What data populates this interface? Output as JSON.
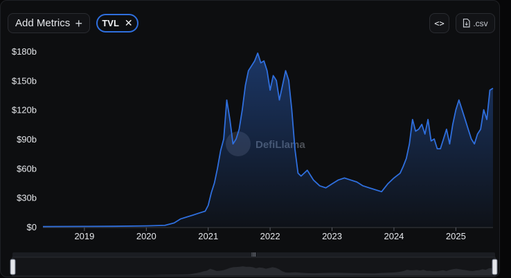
{
  "toolbar": {
    "add_metrics_label": "Add Metrics",
    "add_icon": "plus-icon",
    "metric_chip_label": "TVL",
    "remove_icon": "close-icon",
    "embed_icon": "code-icon",
    "csv_label": ".csv",
    "csv_icon": "file-icon"
  },
  "watermark": "DefiLlama",
  "chart_data": {
    "type": "area",
    "title": "",
    "xlabel": "",
    "ylabel": "",
    "x_ticks": [
      "2019",
      "2020",
      "2021",
      "2022",
      "2023",
      "2024",
      "2025"
    ],
    "y_ticks": [
      "$0",
      "$30b",
      "$60b",
      "$90b",
      "$120b",
      "$150b",
      "$180b"
    ],
    "ylim": [
      0,
      180
    ],
    "xlim": [
      2018.33,
      2025.6
    ],
    "grid": false,
    "line_color": "#2f6fde",
    "series": [
      {
        "values_unit": "USD billions",
        "x": [
          2018.33,
          2019.0,
          2019.5,
          2020.0,
          2020.3,
          2020.45,
          2020.55,
          2020.65,
          2020.75,
          2020.85,
          2020.95,
          2021.0,
          2021.05,
          2021.1,
          2021.15,
          2021.2,
          2021.25,
          2021.3,
          2021.35,
          2021.4,
          2021.45,
          2021.5,
          2021.55,
          2021.6,
          2021.65,
          2021.7,
          2021.75,
          2021.8,
          2021.85,
          2021.9,
          2021.95,
          2022.0,
          2022.05,
          2022.1,
          2022.15,
          2022.2,
          2022.25,
          2022.3,
          2022.35,
          2022.4,
          2022.45,
          2022.5,
          2022.6,
          2022.7,
          2022.8,
          2022.9,
          2023.0,
          2023.1,
          2023.2,
          2023.3,
          2023.4,
          2023.5,
          2023.6,
          2023.7,
          2023.8,
          2023.9,
          2024.0,
          2024.1,
          2024.15,
          2024.2,
          2024.25,
          2024.3,
          2024.35,
          2024.4,
          2024.45,
          2024.5,
          2024.55,
          2024.6,
          2024.65,
          2024.7,
          2024.75,
          2024.8,
          2024.85,
          2024.9,
          2024.95,
          2025.0,
          2025.05,
          2025.1,
          2025.15,
          2025.2,
          2025.25,
          2025.3,
          2025.35,
          2025.4,
          2025.45,
          2025.5,
          2025.55,
          2025.6
        ],
        "values": [
          0.3,
          0.4,
          0.6,
          1.0,
          1.5,
          4,
          8,
          10,
          12,
          14,
          16,
          22,
          35,
          45,
          60,
          78,
          90,
          130,
          110,
          85,
          90,
          100,
          120,
          145,
          160,
          165,
          170,
          178,
          168,
          170,
          160,
          140,
          155,
          150,
          130,
          145,
          160,
          150,
          120,
          80,
          55,
          52,
          58,
          48,
          42,
          40,
          44,
          48,
          50,
          48,
          46,
          42,
          40,
          38,
          36,
          44,
          50,
          55,
          62,
          70,
          85,
          110,
          98,
          100,
          105,
          95,
          110,
          88,
          90,
          80,
          80,
          90,
          100,
          85,
          105,
          120,
          130,
          120,
          110,
          100,
          90,
          85,
          95,
          100,
          120,
          110,
          140,
          142
        ]
      }
    ],
    "brush": {
      "range": [
        2018.33,
        2025.6
      ]
    }
  }
}
